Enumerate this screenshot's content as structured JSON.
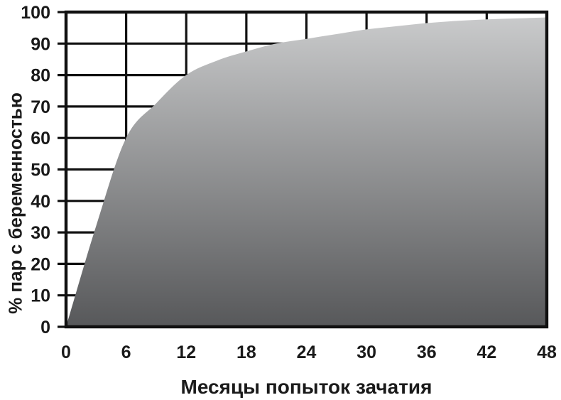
{
  "chart_data": {
    "type": "area",
    "title": "",
    "xlabel": "Месяцы попыток зачатия",
    "ylabel": "% пар с беременностью",
    "x": [
      0,
      3,
      6,
      9,
      12,
      15,
      18,
      21,
      24,
      27,
      30,
      33,
      36,
      39,
      42,
      45,
      48
    ],
    "values": [
      0,
      32,
      60,
      71,
      80,
      84.5,
      87.5,
      90,
      91.5,
      93,
      94.5,
      95.5,
      96.5,
      97.2,
      97.7,
      98,
      98.3
    ],
    "xlim": [
      0,
      48
    ],
    "ylim": [
      0,
      100
    ],
    "x_ticks": [
      0,
      6,
      12,
      18,
      24,
      30,
      36,
      42,
      48
    ],
    "y_ticks": [
      0,
      10,
      20,
      30,
      40,
      50,
      60,
      70,
      80,
      90,
      100
    ],
    "grid": true,
    "legend_position": "none",
    "axis_color": "#111111",
    "fill_gradient": {
      "bottom_color": "#57585a",
      "top_color": "#cbcccd"
    }
  }
}
